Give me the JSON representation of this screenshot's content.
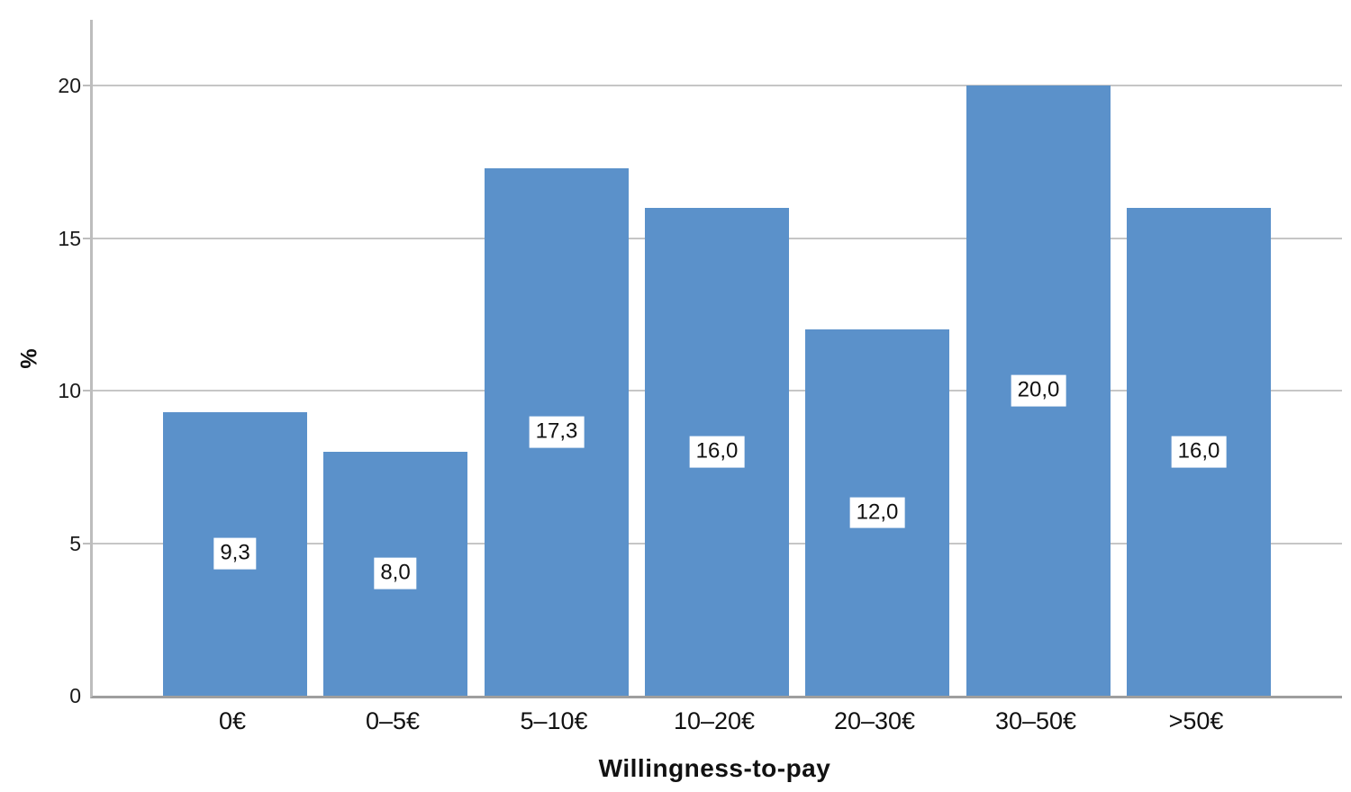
{
  "chart_data": {
    "type": "bar",
    "title": "",
    "xlabel": "Willingness-to-pay",
    "ylabel": "%",
    "categories": [
      "0€",
      "0–5€",
      "5–10€",
      "10–20€",
      "20–30€",
      "30–50€",
      ">50€"
    ],
    "values": [
      9.3,
      8,
      17.3,
      16,
      12,
      20,
      16
    ],
    "value_labels": [
      "9,3",
      "8,0",
      "17,3",
      "16,0",
      "12,0",
      "20,0",
      "16,0"
    ],
    "yticks": [
      0,
      5,
      10,
      15,
      20
    ],
    "ytick_labels": [
      "0",
      "5",
      "10",
      "15",
      "20"
    ],
    "ylim": [
      0,
      22.2
    ],
    "grid": "horizontal-only",
    "legend": "none",
    "decimal_separator": ",",
    "colors": {
      "bar": "#5B91CA",
      "gridline": "#C6C6C6",
      "y_axis_line": "#BDBDBD",
      "x_axis_line": "#9E9E9E",
      "text": "#111111",
      "value_label_bg": "#FFFFFF"
    }
  }
}
